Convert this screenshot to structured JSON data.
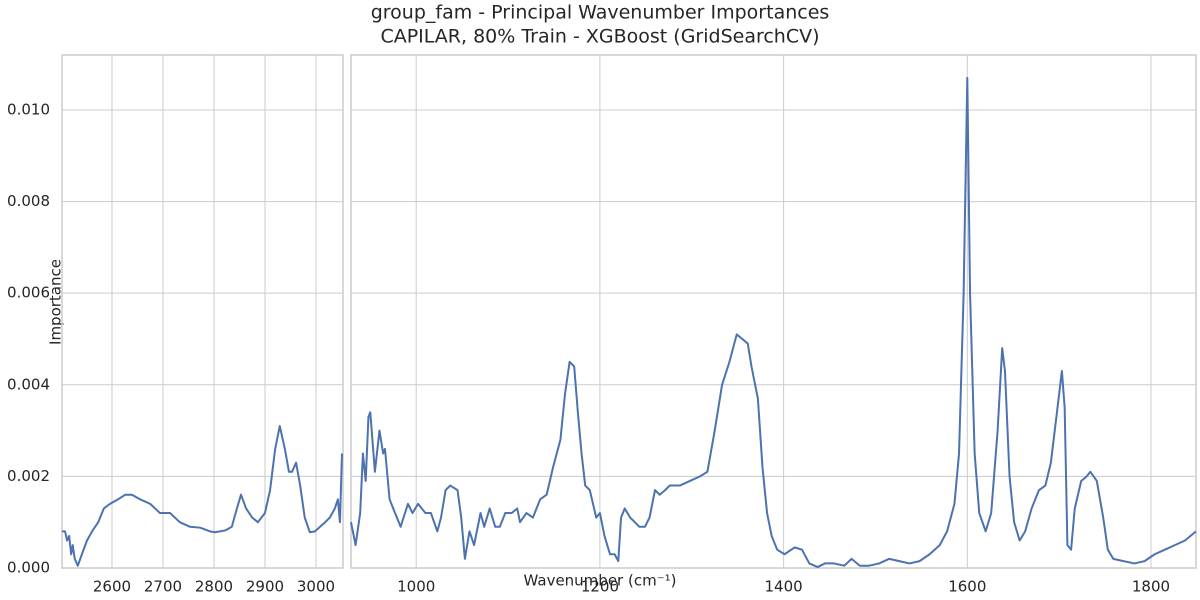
{
  "chart_data": [
    {
      "type": "line",
      "title": "group_fam - Principal Wavenumber Importances",
      "subtitle": "CAPILAR, 80% Train - XGBoost (GridSearchCV)",
      "ylabel": "Importance",
      "grid": true,
      "xlim": [
        2502,
        3053
      ],
      "xticks": [
        2600,
        2700,
        2800,
        2900,
        3000
      ],
      "ylim": [
        0,
        0.0112
      ],
      "yticks": [
        {
          "value": 0,
          "label": "0.000"
        },
        {
          "value": 0.002,
          "label": "0.002"
        },
        {
          "value": 0.004,
          "label": "0.004"
        },
        {
          "value": 0.006,
          "label": "0.006"
        },
        {
          "value": 0.008,
          "label": "0.008"
        },
        {
          "value": 0.01,
          "label": "0.010"
        }
      ],
      "x": [
        2502,
        2508,
        2512,
        2516,
        2520,
        2523,
        2527,
        2533,
        2541,
        2551,
        2561,
        2573,
        2584,
        2596,
        2612,
        2626,
        2639,
        2655,
        2675,
        2694,
        2714,
        2733,
        2753,
        2773,
        2792,
        2802,
        2822,
        2835,
        2845,
        2853,
        2863,
        2875,
        2886,
        2900,
        2910,
        2920,
        2929,
        2939,
        2947,
        2953,
        2961,
        2969,
        2978,
        2988,
        2998,
        3008,
        3018,
        3027,
        3037,
        3043,
        3047,
        3051
      ],
      "series": [
        {
          "color": "#4c72b0",
          "values": [
            0.0008,
            0.0008,
            0.0006,
            0.0007,
            0.0003,
            0.0005,
            0.0002,
            5e-05,
            0.0003,
            0.0006,
            0.0008,
            0.001,
            0.0013,
            0.0014,
            0.0015,
            0.0016,
            0.0016,
            0.0015,
            0.0014,
            0.0012,
            0.0012,
            0.001,
            0.0009,
            0.00088,
            0.0008,
            0.00078,
            0.00082,
            0.0009,
            0.0013,
            0.0016,
            0.0013,
            0.0011,
            0.001,
            0.0012,
            0.0017,
            0.0026,
            0.0031,
            0.0026,
            0.0021,
            0.0021,
            0.0023,
            0.0018,
            0.0011,
            0.00078,
            0.0008,
            0.0009,
            0.001,
            0.0011,
            0.0013,
            0.0015,
            0.001,
            0.0025
          ]
        }
      ]
    },
    {
      "type": "line",
      "xlabel": "Wavenumber (cm⁻¹)",
      "grid": true,
      "xlim": [
        929,
        1849
      ],
      "xticks": [
        1000,
        1200,
        1400,
        1600,
        1800
      ],
      "ylim": [
        0,
        0.0112
      ],
      "yticks": [
        0,
        0.002,
        0.004,
        0.006,
        0.008,
        0.01
      ],
      "x": [
        929,
        934,
        939,
        942,
        945,
        948,
        950,
        955,
        960,
        964,
        966,
        971,
        975,
        983,
        991,
        996,
        1002,
        1010,
        1016,
        1023,
        1027,
        1032,
        1037,
        1045,
        1049,
        1053,
        1058,
        1063,
        1070,
        1074,
        1080,
        1086,
        1091,
        1097,
        1104,
        1110,
        1113,
        1120,
        1127,
        1135,
        1142,
        1149,
        1157,
        1162,
        1167,
        1172,
        1176,
        1180,
        1184,
        1189,
        1196,
        1200,
        1205,
        1211,
        1216,
        1220,
        1223,
        1227,
        1233,
        1243,
        1249,
        1254,
        1260,
        1265,
        1271,
        1276,
        1282,
        1287,
        1298,
        1309,
        1317,
        1325,
        1333,
        1341,
        1349,
        1355,
        1361,
        1365,
        1372,
        1377,
        1382,
        1387,
        1393,
        1401,
        1412,
        1420,
        1428,
        1437,
        1445,
        1455,
        1466,
        1474,
        1483,
        1493,
        1504,
        1515,
        1526,
        1537,
        1548,
        1559,
        1570,
        1578,
        1586,
        1591,
        1596,
        1600,
        1603,
        1608,
        1613,
        1620,
        1626,
        1633,
        1638,
        1641,
        1646,
        1651,
        1657,
        1663,
        1670,
        1678,
        1685,
        1691,
        1697,
        1703,
        1706,
        1709,
        1713,
        1717,
        1724,
        1730,
        1734,
        1741,
        1748,
        1753,
        1759,
        1770,
        1782,
        1793,
        1804,
        1815,
        1826,
        1837,
        1849
      ],
      "series": [
        {
          "color": "#4c72b0",
          "values": [
            0.001,
            0.0005,
            0.0012,
            0.0025,
            0.0019,
            0.0033,
            0.0034,
            0.0021,
            0.003,
            0.0025,
            0.0026,
            0.0015,
            0.0013,
            0.0009,
            0.0014,
            0.0012,
            0.0014,
            0.0012,
            0.0012,
            0.0008,
            0.0011,
            0.0017,
            0.0018,
            0.0017,
            0.0011,
            0.0002,
            0.0008,
            0.0005,
            0.0012,
            0.0009,
            0.0013,
            0.0009,
            0.0009,
            0.0012,
            0.0012,
            0.0013,
            0.001,
            0.0012,
            0.0011,
            0.0015,
            0.0016,
            0.0022,
            0.0028,
            0.0038,
            0.0045,
            0.0044,
            0.0034,
            0.0025,
            0.0018,
            0.0017,
            0.0011,
            0.0012,
            0.0007,
            0.0003,
            0.0003,
            0.00015,
            0.0011,
            0.0013,
            0.0011,
            0.0009,
            0.0009,
            0.0011,
            0.0017,
            0.0016,
            0.0017,
            0.0018,
            0.0018,
            0.0018,
            0.0019,
            0.002,
            0.0021,
            0.003,
            0.004,
            0.0045,
            0.0051,
            0.005,
            0.0049,
            0.0044,
            0.0037,
            0.0022,
            0.0012,
            0.0007,
            0.0004,
            0.0003,
            0.00045,
            0.0004,
            0.0001,
            2e-05,
            0.0001,
            0.0001,
            5e-05,
            0.0002,
            5e-05,
            5e-05,
            0.0001,
            0.0002,
            0.00015,
            0.0001,
            0.00015,
            0.0003,
            0.0005,
            0.0008,
            0.0014,
            0.0025,
            0.006,
            0.0107,
            0.006,
            0.0025,
            0.0012,
            0.0008,
            0.0012,
            0.003,
            0.0048,
            0.0043,
            0.002,
            0.001,
            0.0006,
            0.0008,
            0.0013,
            0.0017,
            0.0018,
            0.0023,
            0.0033,
            0.0043,
            0.0035,
            0.0005,
            0.0004,
            0.0013,
            0.0019,
            0.002,
            0.0021,
            0.0019,
            0.0011,
            0.0004,
            0.0002,
            0.00015,
            0.0001,
            0.00015,
            0.0003,
            0.0004,
            0.0005,
            0.0006,
            0.0008
          ]
        }
      ]
    }
  ]
}
